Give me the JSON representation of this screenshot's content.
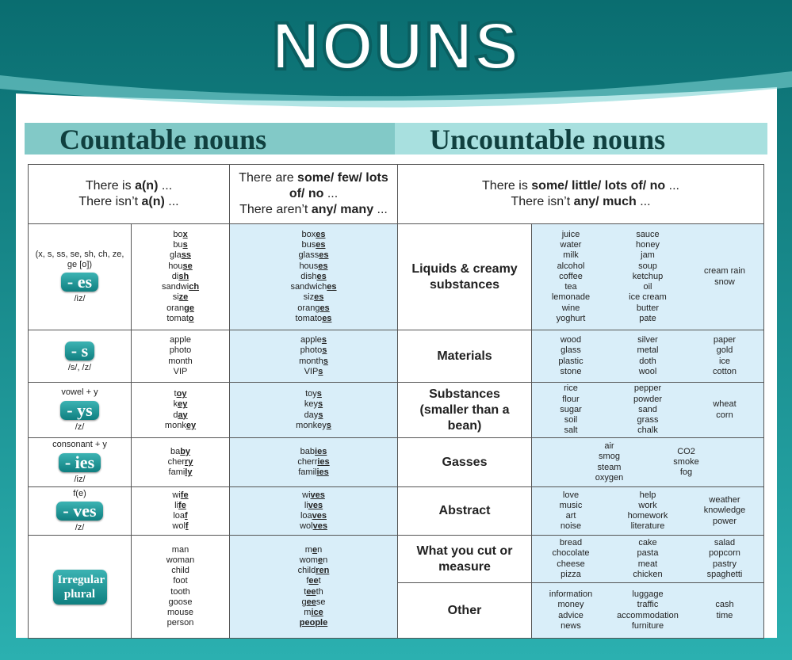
{
  "header": {
    "title": "NOUNS",
    "countable": "Countable nouns",
    "uncountable": "Uncountable nouns"
  },
  "countable": {
    "headers": [
      [
        [
          "There is ",
          {
            "bold": "a(n)"
          },
          " ..."
        ],
        [
          "There isn’t ",
          {
            "bold": "a(n)"
          },
          " ..."
        ]
      ],
      [
        [
          "There are ",
          {
            "bold": "some/ few/ lots of/ no"
          },
          " ..."
        ],
        [
          "There aren’t ",
          {
            "bold": "any/ many"
          },
          " ..."
        ]
      ]
    ],
    "rows": [
      {
        "note": "(x, s, ss, se, sh, ch, ze, ge [o])",
        "badge": "- es",
        "sound": "/iz/",
        "singular": [
          [
            "bo",
            {
              "bold": "x"
            }
          ],
          [
            "bu",
            {
              "bold": "s"
            }
          ],
          [
            "gla",
            {
              "bold": "ss"
            }
          ],
          [
            "hou",
            {
              "bold": "se"
            }
          ],
          [
            "di",
            {
              "bold": "sh"
            }
          ],
          [
            "sandwi",
            {
              "bold": "ch"
            }
          ],
          [
            "si",
            {
              "bold": "ze"
            }
          ],
          [
            "oran",
            {
              "bold": "ge"
            }
          ],
          [
            "tomat",
            {
              "bold": "o"
            }
          ]
        ],
        "plural": [
          [
            "box",
            {
              "bold": "es"
            }
          ],
          [
            "bus",
            {
              "bold": "es"
            }
          ],
          [
            "glass",
            {
              "bold": "es"
            }
          ],
          [
            "hous",
            {
              "bold": "es"
            }
          ],
          [
            "dish",
            {
              "bold": "es"
            }
          ],
          [
            "sandwich",
            {
              "bold": "es"
            }
          ],
          [
            "siz",
            {
              "bold": "es"
            }
          ],
          [
            "orang",
            {
              "bold": "es"
            }
          ],
          [
            "tomato",
            {
              "bold": "es"
            }
          ]
        ]
      },
      {
        "badge": "- s",
        "sound": "/s/, /z/",
        "singular": [
          [
            "apple"
          ],
          [
            "photo"
          ],
          [
            "month"
          ],
          [
            "VIP"
          ]
        ],
        "plural": [
          [
            "apple",
            {
              "bold": "s"
            }
          ],
          [
            "photo",
            {
              "bold": "s"
            }
          ],
          [
            "month",
            {
              "bold": "s"
            }
          ],
          [
            "VIP",
            {
              "bold": "s"
            }
          ]
        ]
      },
      {
        "note": "vowel + y",
        "badge": "- ys",
        "sound": "/z/",
        "singular": [
          [
            "t",
            {
              "bold": "oy"
            }
          ],
          [
            "k",
            {
              "bold": "ey"
            }
          ],
          [
            "d",
            {
              "bold": "ay"
            }
          ],
          [
            "monk",
            {
              "bold": "ey"
            }
          ]
        ],
        "plural": [
          [
            "toy",
            {
              "bold": "s"
            }
          ],
          [
            "key",
            {
              "bold": "s"
            }
          ],
          [
            "day",
            {
              "bold": "s"
            }
          ],
          [
            "monkey",
            {
              "bold": "s"
            }
          ]
        ]
      },
      {
        "note": "consonant + y",
        "badge": "- ies",
        "sound": "/iz/",
        "singular": [
          [
            "ba",
            {
              "bold": "by"
            }
          ],
          [
            "cher",
            {
              "bold": "ry"
            }
          ],
          [
            "fami",
            {
              "bold": "ly"
            }
          ]
        ],
        "plural": [
          [
            "bab",
            {
              "bold": "ies"
            }
          ],
          [
            "cherr",
            {
              "bold": "ies"
            }
          ],
          [
            "famil",
            {
              "bold": "ies"
            }
          ]
        ]
      },
      {
        "note": "f(e)",
        "badge": "- ves",
        "sound": "/z/",
        "singular": [
          [
            "wi",
            {
              "bold": "fe"
            }
          ],
          [
            "li",
            {
              "bold": "fe"
            }
          ],
          [
            "loa",
            {
              "bold": "f"
            }
          ],
          [
            "wol",
            {
              "bold": "f"
            }
          ]
        ],
        "plural": [
          [
            "wi",
            {
              "bold": "ves"
            }
          ],
          [
            "li",
            {
              "bold": "ves"
            }
          ],
          [
            "loa",
            {
              "bold": "ves"
            }
          ],
          [
            "wol",
            {
              "bold": "ves"
            }
          ]
        ]
      },
      {
        "badge": "Irregular plural",
        "singular": [
          [
            "man"
          ],
          [
            "woman"
          ],
          [
            "child"
          ],
          [
            "foot"
          ],
          [
            "tooth"
          ],
          [
            "goose"
          ],
          [
            "mouse"
          ],
          [
            "person"
          ]
        ],
        "plural": [
          [
            "m",
            {
              "bold": "e"
            },
            "n"
          ],
          [
            "wom",
            {
              "bold": "e"
            },
            "n"
          ],
          [
            "child",
            {
              "bold": "ren"
            }
          ],
          [
            "f",
            {
              "bold": "ee"
            },
            "t"
          ],
          [
            "t",
            {
              "bold": "ee"
            },
            "th"
          ],
          [
            "g",
            {
              "bold": "ee"
            },
            "se"
          ],
          [
            "m",
            {
              "bold": "ice"
            }
          ],
          [
            {
              "bold": "people"
            }
          ]
        ]
      }
    ]
  },
  "uncountable": {
    "header": [
      [
        "There is ",
        {
          "bold": "some/ little/ lots of/ no"
        },
        " ..."
      ],
      [
        "There isn’t ",
        {
          "bold": "any/ much"
        },
        " ..."
      ]
    ],
    "rows": [
      {
        "category": "Liquids & creamy substances",
        "columns": [
          [
            "juice",
            "water",
            "milk",
            "alcohol",
            "coffee",
            "tea",
            "lemonade",
            "wine",
            "yoghurt"
          ],
          [
            "sauce",
            "honey",
            "jam",
            "soup",
            "ketchup",
            "oil",
            "ice cream",
            "butter",
            "pate"
          ],
          [
            "cream rain",
            "snow"
          ]
        ]
      },
      {
        "category": "Materials",
        "columns": [
          [
            "wood",
            "glass",
            "plastic",
            "stone"
          ],
          [
            "silver",
            "metal",
            "doth",
            "wool"
          ],
          [
            "paper",
            "gold",
            "ice",
            "cotton"
          ]
        ]
      },
      {
        "category": "Substances (smaller than a bean)",
        "columns": [
          [
            "rice",
            "flour",
            "sugar",
            "soil",
            "salt"
          ],
          [
            "pepper",
            "powder",
            "sand",
            "grass",
            "chalk"
          ],
          [
            "wheat",
            "corn"
          ]
        ]
      },
      {
        "category": "Gasses",
        "columns": [
          [
            "air",
            "smog",
            "steam",
            "oxygen"
          ],
          [
            "CO2",
            "smoke",
            "fog"
          ]
        ]
      },
      {
        "category": "Abstract",
        "columns": [
          [
            "love",
            "music",
            "art",
            "noise"
          ],
          [
            "help",
            "work",
            "homework",
            "literature"
          ],
          [
            "weather",
            "knowledge",
            "power"
          ]
        ]
      },
      {
        "category": "What you cut or measure",
        "columns": [
          [
            "bread",
            "chocolate",
            "cheese",
            "pizza"
          ],
          [
            "cake",
            "pasta",
            "meat",
            "chicken"
          ],
          [
            "salad",
            "popcorn",
            "pastry",
            "spaghetti"
          ]
        ]
      },
      {
        "category": "Other",
        "columns": [
          [
            "information",
            "money",
            "advice",
            "news"
          ],
          [
            "luggage",
            "traffic",
            "accommodation",
            "furniture"
          ],
          [
            "cash",
            "time"
          ]
        ]
      }
    ]
  }
}
